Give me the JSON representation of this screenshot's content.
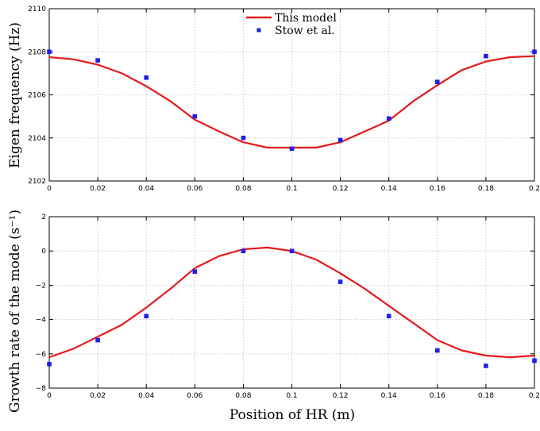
{
  "chart_data": [
    {
      "type": "line",
      "title": "",
      "xlabel": "",
      "ylabel": "Eigen frequency (Hz)",
      "xlim": [
        0,
        0.2
      ],
      "ylim": [
        2102,
        2110
      ],
      "xticks": [
        0,
        0.02,
        0.04,
        0.06,
        0.08,
        0.1,
        0.12,
        0.14,
        0.16,
        0.18,
        0.2
      ],
      "xtick_labels": [
        "0",
        "0.02",
        "0.04",
        "0.06",
        "0.08",
        "0.1",
        "0.12",
        "0.14",
        "0.16",
        "0.18",
        "0.2"
      ],
      "yticks": [
        2102,
        2104,
        2106,
        2108,
        2110
      ],
      "ytick_labels": [
        "2102",
        "2104",
        "2106",
        "2108",
        "2110"
      ],
      "grid": true,
      "legend": {
        "placement": "top-center"
      },
      "series": [
        {
          "name": "This model",
          "kind": "line",
          "color": "#e31a1c",
          "x": [
            0,
            0.01,
            0.02,
            0.03,
            0.04,
            0.05,
            0.06,
            0.07,
            0.08,
            0.09,
            0.1,
            0.11,
            0.12,
            0.13,
            0.14,
            0.15,
            0.16,
            0.17,
            0.18,
            0.19,
            0.2
          ],
          "y": [
            2107.75,
            2107.65,
            2107.4,
            2107.0,
            2106.4,
            2105.7,
            2104.85,
            2104.3,
            2103.8,
            2103.55,
            2103.55,
            2103.55,
            2103.8,
            2104.3,
            2104.8,
            2105.7,
            2106.45,
            2107.15,
            2107.55,
            2107.75,
            2107.8
          ]
        },
        {
          "name": "Stow et al.",
          "kind": "marker",
          "color": "#1f1fe6",
          "x": [
            0,
            0.02,
            0.04,
            0.06,
            0.08,
            0.1,
            0.12,
            0.14,
            0.16,
            0.18,
            0.2
          ],
          "y": [
            2108.0,
            2107.6,
            2106.8,
            2105.0,
            2104.0,
            2103.5,
            2103.9,
            2104.9,
            2106.6,
            2107.8,
            2108.0
          ]
        }
      ]
    },
    {
      "type": "line",
      "title": "",
      "xlabel": "Position of HR (m)",
      "ylabel": "Growth rate of the mode (s⁻¹)",
      "xlim": [
        0,
        0.2
      ],
      "ylim": [
        -8,
        2
      ],
      "xticks": [
        0,
        0.02,
        0.04,
        0.06,
        0.08,
        0.1,
        0.12,
        0.14,
        0.16,
        0.18,
        0.2
      ],
      "xtick_labels": [
        "0",
        "0.02",
        "0.04",
        "0.06",
        "0.08",
        "0.1",
        "0.12",
        "0.14",
        "0.16",
        "0.18",
        "0.2"
      ],
      "yticks": [
        -8,
        -6,
        -4,
        -2,
        0,
        2
      ],
      "ytick_labels": [
        "−8",
        "−6",
        "−4",
        "−2",
        "0",
        "2"
      ],
      "grid": true,
      "series": [
        {
          "name": "This model",
          "kind": "line",
          "color": "#e31a1c",
          "x": [
            0,
            0.01,
            0.02,
            0.03,
            0.04,
            0.05,
            0.06,
            0.07,
            0.08,
            0.09,
            0.1,
            0.11,
            0.12,
            0.13,
            0.14,
            0.15,
            0.16,
            0.17,
            0.18,
            0.19,
            0.2
          ],
          "y": [
            -6.2,
            -5.7,
            -5.0,
            -4.3,
            -3.3,
            -2.2,
            -1.0,
            -0.3,
            0.1,
            0.2,
            0.0,
            -0.5,
            -1.3,
            -2.2,
            -3.2,
            -4.2,
            -5.2,
            -5.8,
            -6.1,
            -6.2,
            -6.1
          ]
        },
        {
          "name": "Stow et al.",
          "kind": "marker",
          "color": "#1f1fe6",
          "x": [
            0,
            0.02,
            0.04,
            0.06,
            0.08,
            0.1,
            0.12,
            0.14,
            0.16,
            0.18,
            0.2
          ],
          "y": [
            -6.6,
            -5.2,
            -3.8,
            -1.2,
            0.0,
            0.0,
            -1.8,
            -3.8,
            -5.8,
            -6.7,
            -6.4
          ]
        }
      ]
    }
  ]
}
